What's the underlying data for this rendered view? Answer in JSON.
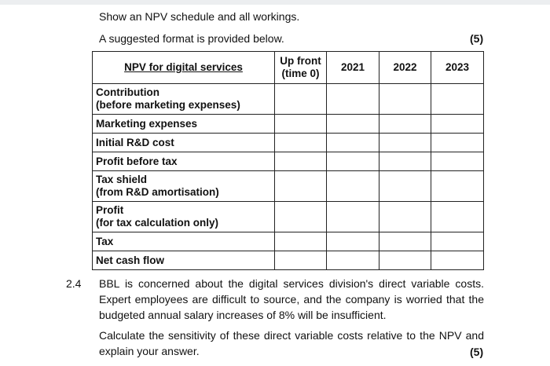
{
  "intro": {
    "line1": "Show an NPV schedule and all workings.",
    "line2": "A suggested format is provided below.",
    "marks": "(5)"
  },
  "table": {
    "headers": [
      "NPV for digital services",
      "Up front (time 0)",
      "2021",
      "2022",
      "2023"
    ],
    "rows": [
      {
        "label_line1": "Contribution",
        "label_line2": "(before marketing expenses)"
      },
      {
        "label_line1": "Marketing expenses",
        "label_line2": ""
      },
      {
        "label_line1": "Initial R&D cost",
        "label_line2": ""
      },
      {
        "label_line1": "Profit before tax",
        "label_line2": ""
      },
      {
        "label_line1": "Tax shield",
        "label_line2": "(from R&D amortisation)"
      },
      {
        "label_line1": "Profit",
        "label_line2": "(for tax calculation only)"
      },
      {
        "label_line1": "Tax",
        "label_line2": ""
      },
      {
        "label_line1": "Net cash flow",
        "label_line2": ""
      }
    ]
  },
  "question": {
    "number": "2.4",
    "para1": "BBL is concerned about the digital services division's direct variable costs. Expert employees are difficult to source, and the company is worried that the budgeted annual salary increases of 8% will be insufficient.",
    "para2": "Calculate the sensitivity of these direct variable costs relative to the NPV and explain your answer.",
    "marks": "(5)"
  }
}
